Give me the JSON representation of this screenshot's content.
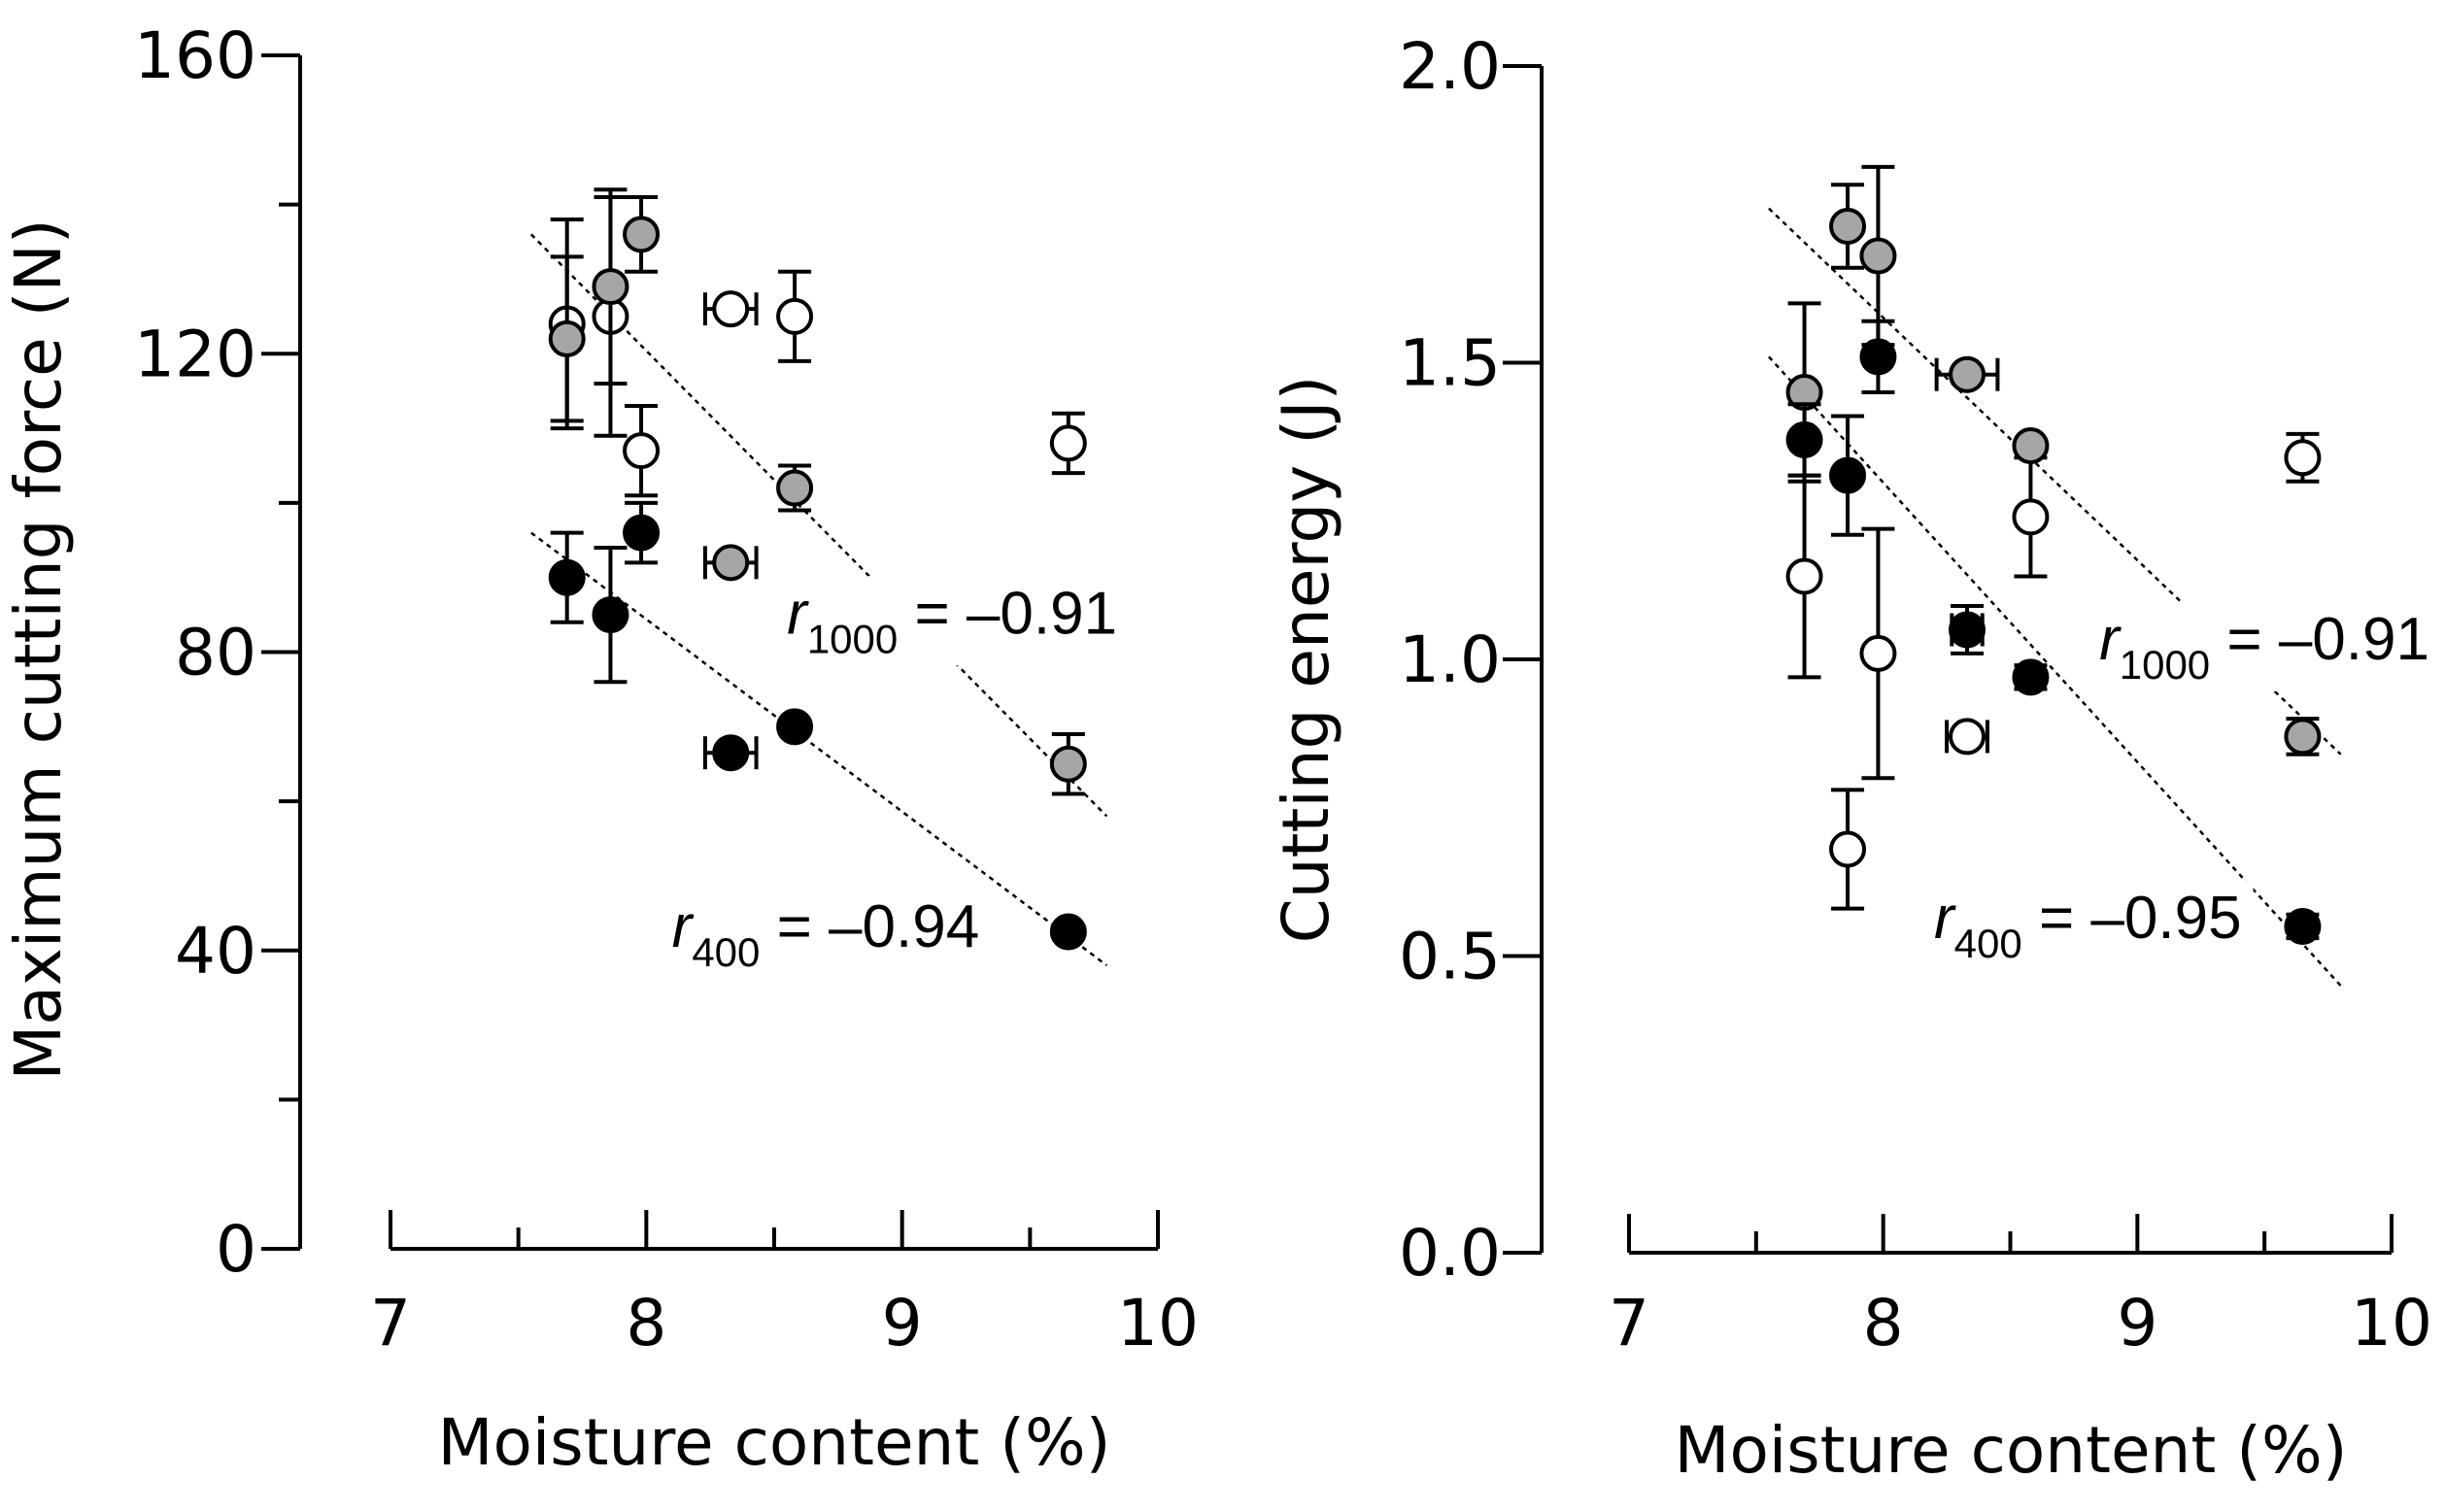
{
  "chart_data": [
    {
      "type": "scatter",
      "panel": "left",
      "xlabel": "Moisture content (%)",
      "ylabel": "Maximum cutting force (N)",
      "xlim": [
        7,
        10
      ],
      "ylim": [
        0,
        160
      ],
      "x_ticks": [
        7,
        8,
        9,
        10
      ],
      "x_minor_ticks": [
        7.5,
        8.5,
        9.5
      ],
      "y_ticks": [
        0,
        40,
        80,
        120,
        160
      ],
      "y_minor_ticks": [
        20,
        60,
        100,
        140
      ],
      "colors": {
        "open": "#ffffff",
        "gray": "#a6a6a6",
        "black": "#000000",
        "stroke": "#000000"
      },
      "series": [
        {
          "name": "open",
          "fill": "#ffffff",
          "points": [
            {
              "x": 7.69,
              "y": 124,
              "yerr": 14,
              "xerr": 0
            },
            {
              "x": 7.86,
              "y": 125,
              "yerr": 16,
              "xerr": 0
            },
            {
              "x": 7.98,
              "y": 107,
              "yerr": 6,
              "xerr": 0
            },
            {
              "x": 8.33,
              "y": 126,
              "yerr": 0,
              "xerr": 0.1
            },
            {
              "x": 8.58,
              "y": 125,
              "yerr": 6,
              "xerr": 0
            },
            {
              "x": 9.65,
              "y": 108,
              "yerr": 4,
              "xerr": 0
            }
          ]
        },
        {
          "name": "gray",
          "fill": "#a6a6a6",
          "points": [
            {
              "x": 7.69,
              "y": 122,
              "yerr": 11,
              "xerr": 0
            },
            {
              "x": 7.86,
              "y": 129,
              "yerr": 13,
              "xerr": 0
            },
            {
              "x": 7.98,
              "y": 136,
              "yerr": 5,
              "xerr": 0
            },
            {
              "x": 8.33,
              "y": 92,
              "yerr": 0,
              "xerr": 0.1
            },
            {
              "x": 8.58,
              "y": 102,
              "yerr": 3,
              "xerr": 0
            },
            {
              "x": 9.65,
              "y": 65,
              "yerr": 4,
              "xerr": 0
            }
          ],
          "fit": [
            [
              7.55,
              136
            ],
            [
              9.8,
              58
            ]
          ]
        },
        {
          "name": "black",
          "fill": "#000000",
          "points": [
            {
              "x": 7.69,
              "y": 90,
              "yerr": 6,
              "xerr": 0
            },
            {
              "x": 7.86,
              "y": 85,
              "yerr": 9,
              "xerr": 0
            },
            {
              "x": 7.98,
              "y": 96,
              "yerr": 4,
              "xerr": 0
            },
            {
              "x": 8.33,
              "y": 66.5,
              "yerr": 0,
              "xerr": 0.1
            },
            {
              "x": 8.58,
              "y": 70,
              "yerr": 0,
              "xerr": 0
            },
            {
              "x": 9.65,
              "y": 42.5,
              "yerr": 0,
              "xerr": 0
            }
          ],
          "fit": [
            [
              7.55,
              96
            ],
            [
              9.8,
              38
            ]
          ]
        }
      ],
      "annotations": [
        {
          "name": "r1000",
          "italic": "r",
          "sub": "1000",
          "text": " = –0.91",
          "at": [
            8.55,
            82.5
          ]
        },
        {
          "name": "r400",
          "italic": "r",
          "sub": "400",
          "text": " = –0.94",
          "at": [
            8.1,
            40.5
          ]
        }
      ]
    },
    {
      "type": "scatter",
      "panel": "right",
      "xlabel": "Moisture content (%)",
      "ylabel": "Cutting energy (J)",
      "xlim": [
        7,
        10
      ],
      "ylim": [
        0,
        2
      ],
      "x_ticks": [
        7,
        8,
        9,
        10
      ],
      "x_minor_ticks": [
        7.5,
        8.5,
        9.5
      ],
      "y_ticks": [
        0.0,
        0.5,
        1.0,
        1.5,
        2.0
      ],
      "y_tick_labels": [
        "0.0",
        "0.5",
        "1.0",
        "1.5",
        "2.0"
      ],
      "y_minor_ticks": [],
      "colors": {
        "open": "#ffffff",
        "gray": "#a6a6a6",
        "black": "#000000",
        "stroke": "#000000"
      },
      "series": [
        {
          "name": "open",
          "fill": "#ffffff",
          "points": [
            {
              "x": 7.69,
              "y": 1.14,
              "yerr": 0.17,
              "xerr": 0
            },
            {
              "x": 7.86,
              "y": 0.68,
              "yerr": 0.1,
              "xerr": 0
            },
            {
              "x": 7.98,
              "y": 1.01,
              "yerr": 0.21,
              "xerr": 0
            },
            {
              "x": 8.33,
              "y": 0.87,
              "yerr": 0,
              "xerr": 0.08
            },
            {
              "x": 8.58,
              "y": 1.24,
              "yerr": 0.1,
              "xerr": 0
            },
            {
              "x": 9.65,
              "y": 1.34,
              "yerr": 0.04,
              "xerr": 0
            }
          ]
        },
        {
          "name": "gray",
          "fill": "#a6a6a6",
          "points": [
            {
              "x": 7.69,
              "y": 1.45,
              "yerr": 0.15,
              "xerr": 0
            },
            {
              "x": 7.86,
              "y": 1.73,
              "yerr": 0.07,
              "xerr": 0
            },
            {
              "x": 7.98,
              "y": 1.68,
              "yerr": 0.15,
              "xerr": 0
            },
            {
              "x": 8.33,
              "y": 1.48,
              "yerr": 0,
              "xerr": 0.12
            },
            {
              "x": 8.58,
              "y": 1.36,
              "yerr": 0,
              "xerr": 0
            },
            {
              "x": 9.65,
              "y": 0.87,
              "yerr": 0.03,
              "xerr": 0
            }
          ],
          "fit": [
            [
              7.55,
              1.76
            ],
            [
              9.8,
              0.84
            ]
          ]
        },
        {
          "name": "black",
          "fill": "#000000",
          "points": [
            {
              "x": 7.69,
              "y": 1.37,
              "yerr": 0.06,
              "xerr": 0
            },
            {
              "x": 7.86,
              "y": 1.31,
              "yerr": 0.1,
              "xerr": 0
            },
            {
              "x": 7.98,
              "y": 1.51,
              "yerr": 0.06,
              "xerr": 0
            },
            {
              "x": 8.33,
              "y": 1.05,
              "yerr": 0.04,
              "xerr": 0.06
            },
            {
              "x": 8.58,
              "y": 0.97,
              "yerr": 0.02,
              "xerr": 0
            },
            {
              "x": 9.65,
              "y": 0.55,
              "yerr": 0.02,
              "xerr": 0
            }
          ],
          "fit": [
            [
              7.55,
              1.51
            ],
            [
              9.8,
              0.45
            ]
          ]
        }
      ],
      "annotations": [
        {
          "name": "r1000",
          "italic": "r",
          "sub": "1000",
          "text": " = –0.91",
          "at": [
            8.85,
            1.0
          ]
        },
        {
          "name": "r400",
          "italic": "r",
          "sub": "400",
          "text": " = –0.95",
          "at": [
            8.2,
            0.53
          ]
        }
      ]
    }
  ]
}
